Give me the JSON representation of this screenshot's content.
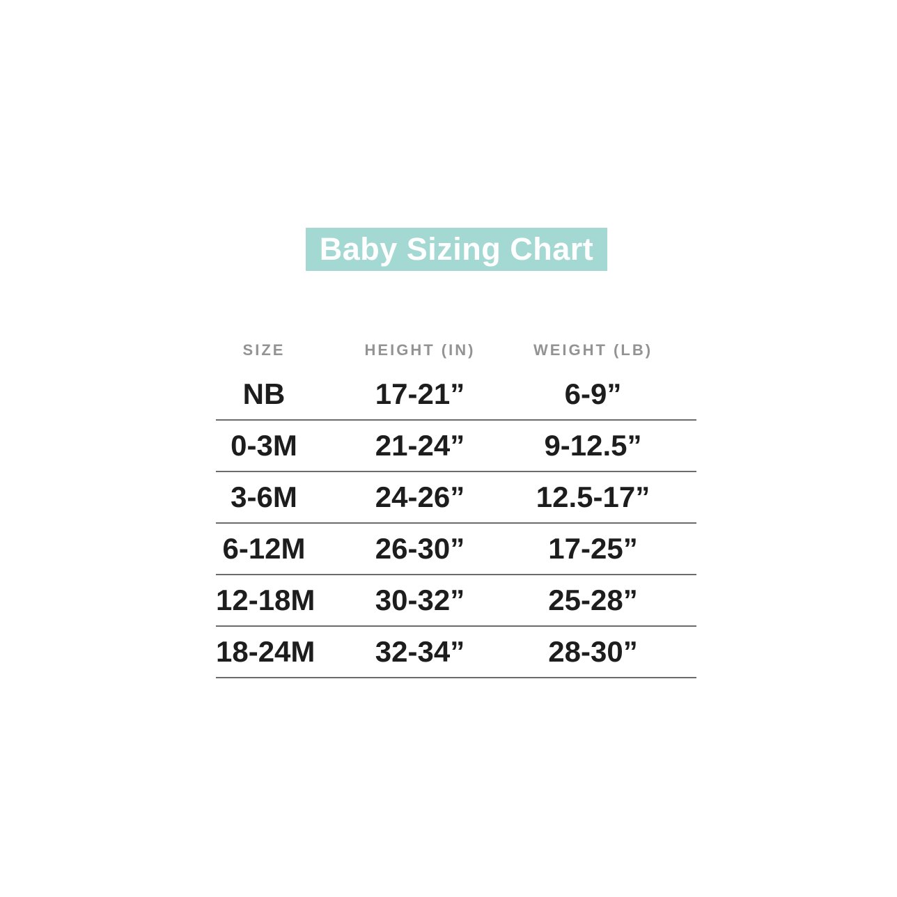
{
  "banner": {
    "title": "Baby Sizing Chart",
    "background_color": "#a3d8d3",
    "text_color": "#ffffff"
  },
  "colors": {
    "page_background": "#ffffff",
    "header_text": "#939393",
    "cell_text": "#1d1d1d",
    "divider": "#6b6b6b"
  },
  "chart_data": {
    "type": "table",
    "title": "Baby Sizing Chart",
    "columns": [
      "SIZE",
      "HEIGHT (IN)",
      "WEIGHT (LB)"
    ],
    "rows": [
      [
        "NB",
        "17-21”",
        "6-9”"
      ],
      [
        "0-3M",
        "21-24”",
        "9-12.5”"
      ],
      [
        "3-6M",
        "24-26”",
        "12.5-17”"
      ],
      [
        "6-12M",
        "26-30”",
        "17-25”"
      ],
      [
        "12-18M",
        "30-32”",
        "25-28”"
      ],
      [
        "18-24M",
        "32-34”",
        "28-30”"
      ]
    ],
    "layout": {
      "legend": "none",
      "grid": "horizontal-rules-only",
      "header_style": "uppercase-gray",
      "units": {
        "height": "inches",
        "weight": "pounds"
      }
    }
  }
}
